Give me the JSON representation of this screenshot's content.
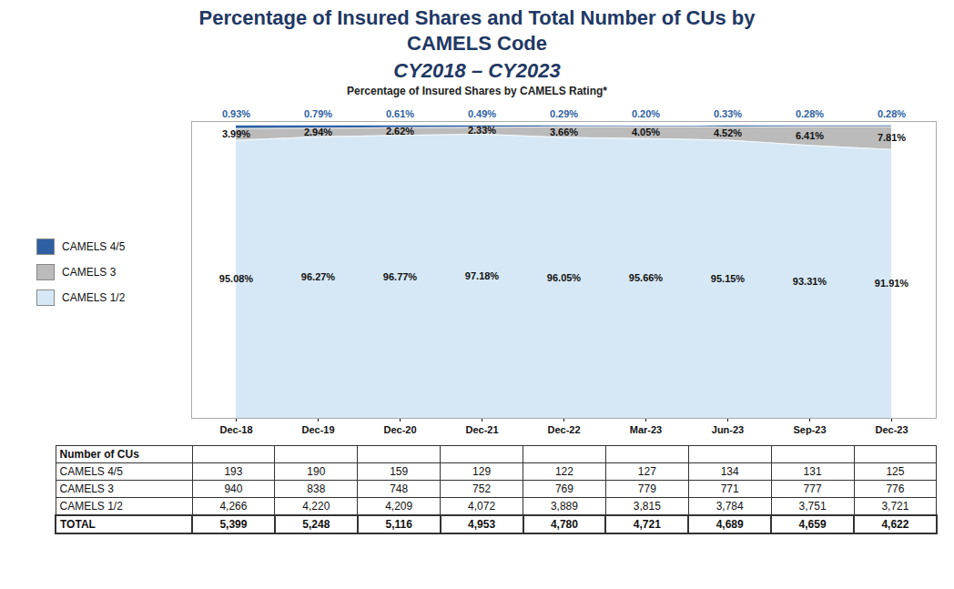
{
  "chart_data": {
    "type": "area",
    "stacked": true,
    "title": "Percentage of Insured Shares and Total Number of CUs by\nCAMELS Code",
    "subtitle": "CY2018 – CY2023",
    "chart_title": "Percentage of Insured Shares by CAMELS Rating*",
    "categories": [
      "Dec-18",
      "Dec-19",
      "Dec-20",
      "Dec-21",
      "Dec-22",
      "Mar-23",
      "Jun-23",
      "Sep-23",
      "Dec-23"
    ],
    "series": [
      {
        "name": "CAMELS 4/5",
        "color": "#2E5FA3",
        "values": [
          0.93,
          0.79,
          0.61,
          0.49,
          0.29,
          0.2,
          0.33,
          0.28,
          0.28
        ],
        "value_labels": [
          "0.93%",
          "0.79%",
          "0.61%",
          "0.49%",
          "0.29%",
          "0.20%",
          "0.33%",
          "0.28%",
          "0.28%"
        ]
      },
      {
        "name": "CAMELS 3",
        "color": "#BBBBBB",
        "values": [
          3.99,
          2.94,
          2.62,
          2.33,
          3.66,
          4.05,
          4.52,
          6.41,
          7.81
        ],
        "value_labels": [
          "3.99%",
          "2.94%",
          "2.62%",
          "2.33%",
          "3.66%",
          "4.05%",
          "4.52%",
          "6.41%",
          "7.81%"
        ]
      },
      {
        "name": "CAMELS 1/2",
        "color": "#D6E8F5",
        "values": [
          95.08,
          96.27,
          96.77,
          97.18,
          96.05,
          95.66,
          95.15,
          93.31,
          91.91
        ],
        "value_labels": [
          "95.08%",
          "96.27%",
          "96.77%",
          "97.18%",
          "96.05%",
          "95.66%",
          "95.15%",
          "93.31%",
          "91.91%"
        ]
      }
    ],
    "ylim": [
      0,
      101.5
    ],
    "yticks": [],
    "tick_labels": "x",
    "grid": false,
    "legend": "left",
    "data_labels": true,
    "table": {
      "title": "Number of CUs",
      "rows": [
        {
          "name": "CAMELS 4/5",
          "values": [
            193,
            190,
            159,
            129,
            122,
            127,
            134,
            131,
            125
          ],
          "value_labels": [
            "193",
            "190",
            "159",
            "129",
            "122",
            "127",
            "134",
            "131",
            "125"
          ]
        },
        {
          "name": "CAMELS 3",
          "values": [
            940,
            838,
            748,
            752,
            769,
            779,
            771,
            777,
            776
          ],
          "value_labels": [
            "940",
            "838",
            "748",
            "752",
            "769",
            "779",
            "771",
            "777",
            "776"
          ]
        },
        {
          "name": "CAMELS 1/2",
          "values": [
            4266,
            4220,
            4209,
            4072,
            3889,
            3815,
            3784,
            3751,
            3721
          ],
          "value_labels": [
            "4,266",
            "4,220",
            "4,209",
            "4,072",
            "3,889",
            "3,815",
            "3,784",
            "3,751",
            "3,721"
          ]
        },
        {
          "name": "TOTAL",
          "values": [
            5399,
            5248,
            5116,
            4953,
            4780,
            4721,
            4689,
            4659,
            4622
          ],
          "value_labels": [
            "5,399",
            "5,248",
            "5,116",
            "4,953",
            "4,780",
            "4,721",
            "4,689",
            "4,659",
            "4,622"
          ]
        }
      ]
    }
  }
}
